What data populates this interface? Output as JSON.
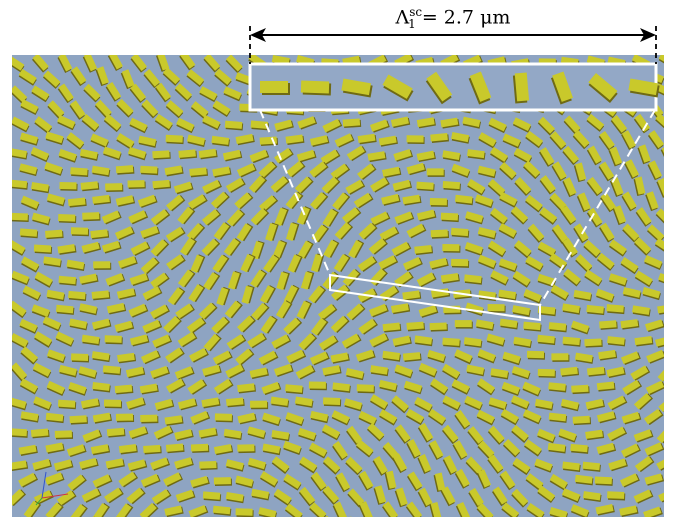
{
  "annotation": {
    "symbol": "Λ",
    "superscript": "sc",
    "subscript": "1",
    "equals": "= 2.7",
    "unit": "μm"
  },
  "colors": {
    "background": "#8ea4c2",
    "particle": "#c9c92b",
    "particle_shadow": "#6f6a14",
    "zoom_frame": "#ffffff",
    "zoom_fill": "#93a8c6",
    "arrow": "#000000"
  },
  "zoom_strip": {
    "particle_angles_deg": [
      0,
      2,
      10,
      30,
      55,
      68,
      85,
      70,
      40,
      10
    ]
  }
}
